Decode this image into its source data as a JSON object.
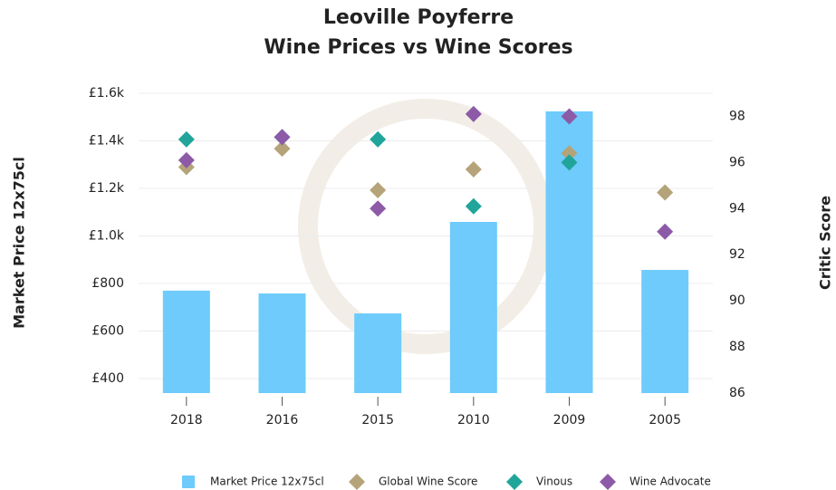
{
  "chart_data": {
    "type": "bar",
    "title": "Leoville Poyferre",
    "subtitle": "Wine Prices vs Wine Scores",
    "y_label": "Market Price 12x75cl",
    "y2_label": "Critic Score",
    "categories": [
      "2018",
      "2016",
      "2015",
      "2010",
      "2009",
      "2005"
    ],
    "series": [
      {
        "name": "Market Price 12x75cl",
        "type": "bar",
        "color": "#6ecbfb",
        "values": [
          770,
          758,
          674,
          1059,
          1524,
          857
        ]
      },
      {
        "name": "Global Wine Score",
        "type": "scatter",
        "axis": "y2",
        "color": "#b5a37a",
        "values": [
          95.8,
          96.6,
          94.8,
          95.7,
          96.4,
          94.7
        ]
      },
      {
        "name": "Vinous",
        "type": "scatter",
        "axis": "y2",
        "color": "#21a59a",
        "values": [
          97.0,
          97.1,
          97.0,
          94.1,
          96.0,
          null
        ]
      },
      {
        "name": "Wine Advocate",
        "type": "scatter",
        "axis": "y2",
        "color": "#8d5aa8",
        "values": [
          96.1,
          97.1,
          94.0,
          98.1,
          98.0,
          93.0
        ]
      }
    ],
    "ylim": [
      339,
      1600
    ],
    "yticks": [
      {
        "value": 400,
        "label": "£400"
      },
      {
        "value": 600,
        "label": "£600"
      },
      {
        "value": 800,
        "label": "£800"
      },
      {
        "value": 1000,
        "label": "£1.0k"
      },
      {
        "value": 1200,
        "label": "£1.2k"
      },
      {
        "value": 1400,
        "label": "£1.4k"
      },
      {
        "value": 1600,
        "label": "£1.6k"
      }
    ],
    "y2lim": [
      86,
      99
    ],
    "y2ticks": [
      86,
      88,
      90,
      92,
      94,
      96,
      98
    ],
    "grid": true,
    "legend": "bottom"
  }
}
